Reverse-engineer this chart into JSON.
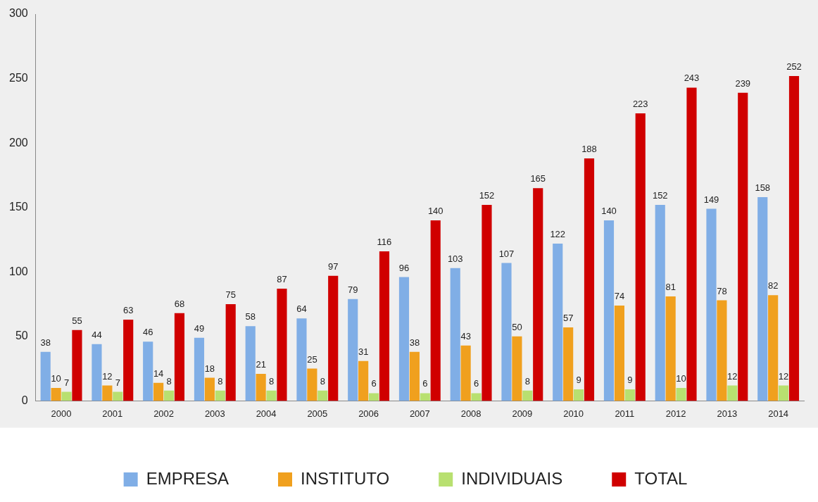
{
  "chart_data": {
    "type": "bar",
    "categories": [
      "2000",
      "2001",
      "2002",
      "2003",
      "2004",
      "2005",
      "2006",
      "2007",
      "2008",
      "2009",
      "2010",
      "2011",
      "2012",
      "2013",
      "2014"
    ],
    "series": [
      {
        "name": "EMPRESA",
        "color": "#80aee6",
        "values": [
          38,
          44,
          46,
          49,
          58,
          64,
          79,
          96,
          103,
          107,
          122,
          140,
          152,
          149,
          158
        ]
      },
      {
        "name": "INSTITUTO",
        "color": "#f0a01e",
        "values": [
          10,
          12,
          14,
          18,
          21,
          25,
          31,
          38,
          43,
          50,
          57,
          74,
          81,
          78,
          82
        ]
      },
      {
        "name": "INDIVIDUAIS",
        "color": "#b8e070",
        "values": [
          7,
          7,
          8,
          8,
          8,
          8,
          6,
          6,
          6,
          8,
          9,
          9,
          10,
          12,
          12
        ]
      },
      {
        "name": "TOTAL",
        "color": "#d00000",
        "values": [
          55,
          63,
          68,
          75,
          87,
          97,
          116,
          140,
          152,
          165,
          188,
          223,
          243,
          239,
          252
        ]
      }
    ],
    "ylim": [
      0,
      300
    ],
    "yticks": [
      0,
      50,
      100,
      150,
      200,
      250,
      300
    ],
    "grid": false,
    "legend": "bottom",
    "data_labels": true
  }
}
